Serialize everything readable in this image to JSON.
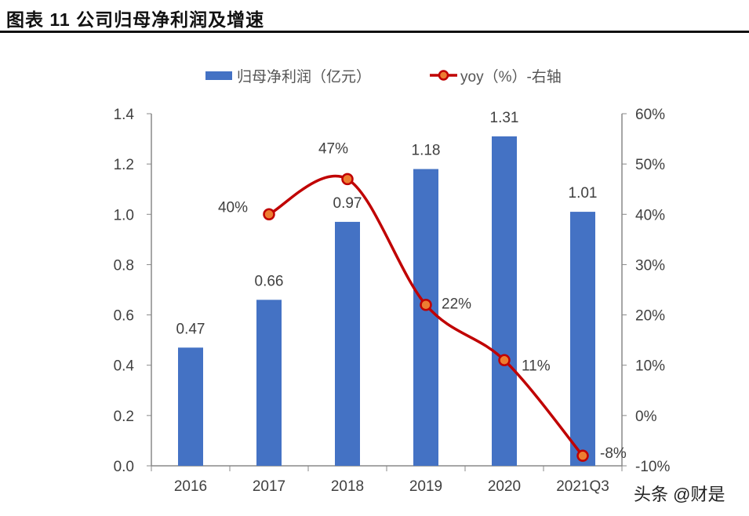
{
  "title": "图表 11 公司归母净利润及增速",
  "watermark": "头条 @财是",
  "chart_data": {
    "type": "bar+line",
    "categories": [
      "2016",
      "2017",
      "2018",
      "2019",
      "2020",
      "2021Q3"
    ],
    "series": [
      {
        "name": "归母净利润（亿元）",
        "type": "bar",
        "axis": "left",
        "color": "#4472C4",
        "values": [
          0.47,
          0.66,
          0.97,
          1.18,
          1.31,
          1.01
        ],
        "labels": [
          "0.47",
          "0.66",
          "0.97",
          "1.18",
          "1.31",
          "1.01"
        ]
      },
      {
        "name": "yoy（%）-右轴",
        "type": "line",
        "axis": "right",
        "color": "#C00000",
        "marker_fill": "#ED7D31",
        "values": [
          null,
          40,
          47,
          22,
          11,
          -8
        ],
        "labels": [
          "",
          "40%",
          "47%",
          "22%",
          "11%",
          "-8%"
        ]
      }
    ],
    "left_axis": {
      "ylim": [
        0,
        1.4
      ],
      "ticks": [
        "0.0",
        "0.2",
        "0.4",
        "0.6",
        "0.8",
        "1.0",
        "1.2",
        "1.4"
      ]
    },
    "right_axis": {
      "ylim": [
        -10,
        60
      ],
      "ticks": [
        "-10%",
        "0%",
        "10%",
        "20%",
        "30%",
        "40%",
        "50%",
        "60%"
      ]
    },
    "legend": "top",
    "grid": false
  }
}
